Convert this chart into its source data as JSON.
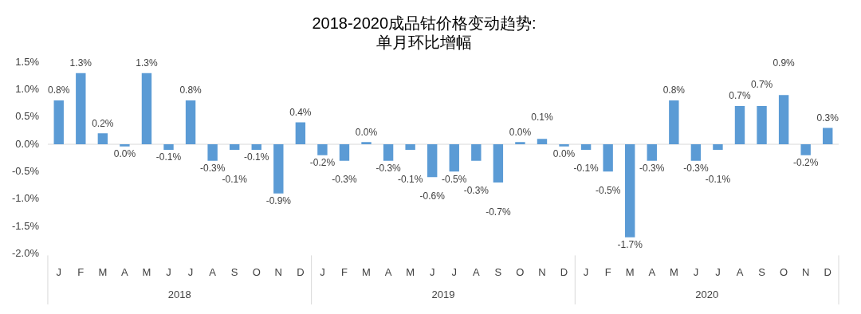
{
  "chart_data": {
    "type": "bar",
    "title": "2018-2020成品钴价格变动趋势:\n单月环比增幅",
    "categories": [
      "J",
      "F",
      "M",
      "A",
      "M",
      "J",
      "J",
      "A",
      "S",
      "O",
      "N",
      "D",
      "J",
      "F",
      "M",
      "A",
      "M",
      "J",
      "J",
      "A",
      "S",
      "O",
      "N",
      "D",
      "J",
      "F",
      "M",
      "A",
      "M",
      "J",
      "J",
      "A",
      "S",
      "O",
      "N",
      "D"
    ],
    "values": [
      0.8,
      1.3,
      0.2,
      -0.04,
      1.3,
      -0.1,
      0.8,
      -0.3,
      -0.1,
      -0.1,
      -0.9,
      0.4,
      -0.2,
      -0.3,
      0.04,
      -0.3,
      -0.1,
      -0.6,
      -0.5,
      -0.3,
      -0.7,
      0.04,
      0.1,
      -0.04,
      -0.1,
      -0.5,
      -1.7,
      -0.3,
      0.8,
      -0.3,
      -0.1,
      0.7,
      0.7,
      0.9,
      -0.2,
      0.3
    ],
    "value_labels": [
      "0.8%",
      "1.3%",
      "0.2%",
      "0.0%",
      "1.3%",
      "-0.1%",
      "0.8%",
      "-0.3%",
      "-0.1%",
      "-0.1%",
      "-0.9%",
      "0.4%",
      "-0.2%",
      "-0.3%",
      "0.0%",
      "-0.3%",
      "-0.1%",
      "-0.6%",
      "-0.5%",
      "-0.3%",
      "-0.7%",
      "0.0%",
      "0.1%",
      "0.0%",
      "-0.1%",
      "-0.5%",
      "-1.7%",
      "-0.3%",
      "0.8%",
      "-0.3%",
      "-0.1%",
      "0.7%",
      "0.7%",
      "0.9%",
      "-0.2%",
      "0.3%"
    ],
    "color": "#5b9bd5",
    "ylim": [
      -2.0,
      1.5
    ],
    "yticks": [
      {
        "value": -2.0,
        "label": "-2.0%"
      },
      {
        "value": -1.5,
        "label": "-1.5%"
      },
      {
        "value": -1.0,
        "label": "-1.0%"
      },
      {
        "value": -0.5,
        "label": "-0.5%"
      },
      {
        "value": 0,
        "label": "0.0%"
      },
      {
        "value": 0.5,
        "label": "0.5%"
      },
      {
        "value": 1.0,
        "label": "1.0%"
      },
      {
        "value": 1.5,
        "label": "1.5%"
      }
    ],
    "annotations": [
      "2018",
      "2019",
      "2020"
    ],
    "legend": false
  }
}
